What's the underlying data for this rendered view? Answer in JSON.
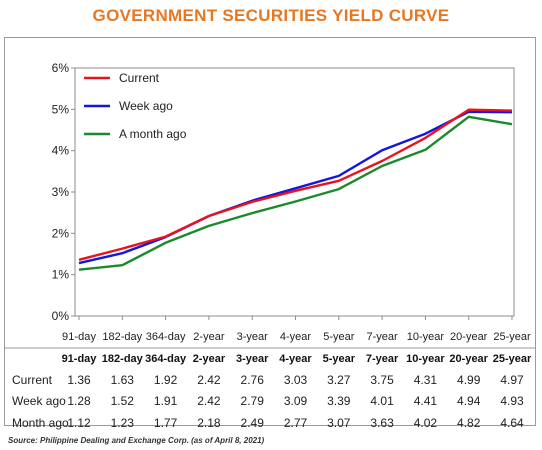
{
  "title": "GOVERNMENT SECURITIES YIELD CURVE",
  "source": "Source: Philippine Dealing and Exchange Corp. (as of April 8, 2021)",
  "chart_data": {
    "type": "line",
    "title": "GOVERNMENT SECURITIES YIELD CURVE",
    "xlabel": "",
    "ylabel": "",
    "ylim": [
      0,
      6
    ],
    "yticks": [
      "0%",
      "1%",
      "2%",
      "3%",
      "4%",
      "5%",
      "6%"
    ],
    "grid": false,
    "legend_position": "top-left",
    "categories": [
      "91-day",
      "182-day",
      "364-day",
      "2-year",
      "3-year",
      "4-year",
      "5-year",
      "7-year",
      "10-year",
      "20-year",
      "25-year"
    ],
    "series": [
      {
        "name": "Current",
        "color": "#e8141b",
        "values": [
          1.36,
          1.63,
          1.92,
          2.42,
          2.76,
          3.03,
          3.27,
          3.75,
          4.31,
          4.99,
          4.97
        ]
      },
      {
        "name": "Week ago",
        "color": "#1515e0",
        "values": [
          1.28,
          1.52,
          1.91,
          2.42,
          2.79,
          3.09,
          3.39,
          4.01,
          4.41,
          4.94,
          4.93
        ]
      },
      {
        "name": "A month ago",
        "color": "#1a8a2a",
        "values": [
          1.12,
          1.23,
          1.77,
          2.18,
          2.49,
          2.77,
          3.07,
          3.63,
          4.02,
          4.82,
          4.64
        ]
      }
    ]
  },
  "table": {
    "header": [
      "91-day",
      "182-day",
      "364-day",
      "2-year",
      "3-year",
      "4-year",
      "5-year",
      "7-year",
      "10-year",
      "20-year",
      "25-year"
    ],
    "rows": [
      {
        "label": "Current",
        "values": [
          "1.36",
          "1.63",
          "1.92",
          "2.42",
          "2.76",
          "3.03",
          "3.27",
          "3.75",
          "4.31",
          "4.99",
          "4.97"
        ]
      },
      {
        "label": "Week ago",
        "values": [
          "1.28",
          "1.52",
          "1.91",
          "2.42",
          "2.79",
          "3.09",
          "3.39",
          "4.01",
          "4.41",
          "4.94",
          "4.93"
        ]
      },
      {
        "label": "Month ago",
        "values": [
          "1.12",
          "1.23",
          "1.77",
          "2.18",
          "2.49",
          "2.77",
          "3.07",
          "3.63",
          "4.02",
          "4.82",
          "4.64"
        ]
      }
    ]
  }
}
